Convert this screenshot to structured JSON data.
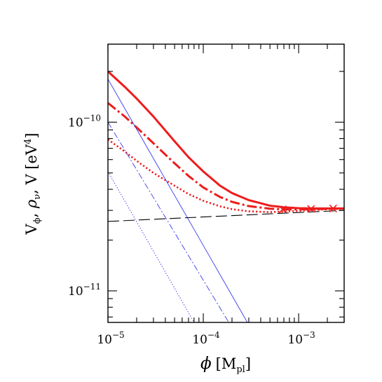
{
  "chart_data": {
    "type": "line",
    "xlabel": "φ [M_pl]",
    "ylabel": "V_φ, ρ_ν, V [eV⁴]",
    "x_scale": "log",
    "y_scale": "log",
    "xlim": [
      1e-05,
      0.003
    ],
    "ylim": [
      6.5e-12,
      2.9e-10
    ],
    "grid": false,
    "x_ticks": [
      {
        "value": 1e-05,
        "mantissa": "10",
        "exponent": "−5"
      },
      {
        "value": 0.0001,
        "mantissa": "10",
        "exponent": "−4"
      },
      {
        "value": 0.001,
        "mantissa": "10",
        "exponent": "−3"
      }
    ],
    "y_ticks": [
      {
        "value": 1e-10,
        "mantissa": "10",
        "exponent": "−10"
      },
      {
        "value": 1e-11,
        "mantissa": "10",
        "exponent": "−11"
      }
    ],
    "series": [
      {
        "style": "thick-solid",
        "color": "#ee1c1c",
        "x": [
          1e-05,
          1.5e-05,
          2e-05,
          3e-05,
          5e-05,
          7e-05,
          0.0001,
          0.00015,
          0.0002,
          0.0003,
          0.0005,
          0.0007,
          0.001,
          0.0015,
          0.0022,
          0.003
        ],
        "y": [
          2e-10,
          1.62e-10,
          1.38e-10,
          1.08e-10,
          7.7e-11,
          6.2e-11,
          5.1e-11,
          4.2e-11,
          3.8e-11,
          3.45e-11,
          3.2e-11,
          3.13e-11,
          3.09e-11,
          3.08e-11,
          3.08e-11,
          3.08e-11
        ]
      },
      {
        "style": "thick-dashdot",
        "color": "#ee1c1c",
        "x": [
          1e-05,
          1.5e-05,
          2e-05,
          3e-05,
          5e-05,
          7e-05,
          0.0001,
          0.00015,
          0.0002,
          0.0003,
          0.0005,
          0.0007,
          0.001,
          0.0015,
          0.003
        ],
        "y": [
          1.3e-10,
          1.08e-10,
          9.3e-11,
          7.5e-11,
          5.7e-11,
          4.8e-11,
          4.1e-11,
          3.6e-11,
          3.37e-11,
          3.18e-11,
          3.07e-11,
          3.04e-11,
          3.04e-11,
          3.05e-11,
          3.08e-11
        ]
      },
      {
        "style": "thick-dotted",
        "color": "#ee1c1c",
        "x": [
          1e-05,
          1.5e-05,
          2e-05,
          3e-05,
          5e-05,
          7e-05,
          0.0001,
          0.00015,
          0.0002,
          0.0003,
          0.0005,
          0.0007,
          0.001,
          0.0015,
          0.003
        ],
        "y": [
          7.9e-11,
          6.7e-11,
          5.9e-11,
          5e-11,
          4.2e-11,
          3.75e-11,
          3.42e-11,
          3.17e-11,
          3.05e-11,
          2.96e-11,
          2.93e-11,
          2.95e-11,
          2.98e-11,
          3.02e-11,
          3.08e-11
        ]
      },
      {
        "style": "thin-solid",
        "color": "#3a3aee",
        "x": [
          1e-05,
          0.00029
        ],
        "y": [
          1.8e-10,
          6.5e-12
        ]
      },
      {
        "style": "thin-dashdot",
        "color": "#3a3aee",
        "x": [
          1e-05,
          0.000185
        ],
        "y": [
          1e-10,
          6.5e-12
        ]
      },
      {
        "style": "thin-dotted",
        "color": "#3a3aee",
        "x": [
          1e-05,
          8e-05
        ],
        "y": [
          5.1e-11,
          6.5e-12
        ]
      },
      {
        "style": "long-dashed",
        "color": "#000000",
        "x": [
          1e-05,
          0.003
        ],
        "y": [
          2.58e-11,
          3e-11
        ]
      }
    ],
    "markers": {
      "symbol": "x",
      "color": "#ee1c1c",
      "points": [
        {
          "x": 0.00068,
          "y": 3.04e-11
        },
        {
          "x": 0.00135,
          "y": 3.06e-11
        },
        {
          "x": 0.0023,
          "y": 3.08e-11
        }
      ]
    }
  }
}
